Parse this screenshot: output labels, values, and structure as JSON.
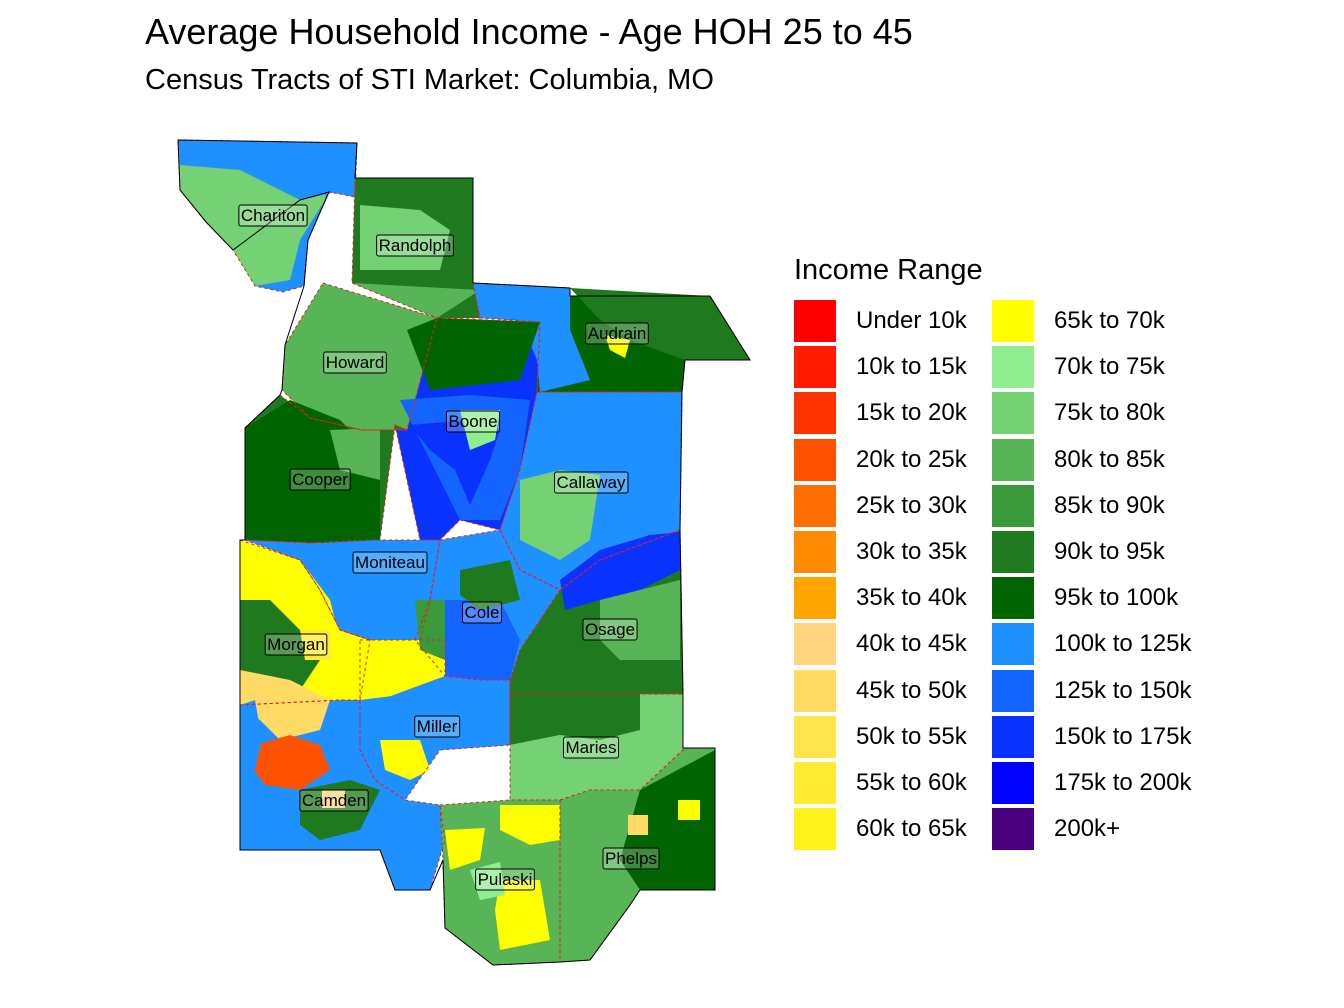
{
  "title": "Average Household Income - Age HOH 25 to 45",
  "subtitle": "Census Tracts of STI Market: Columbia, MO",
  "legend": {
    "title": "Income Range",
    "items": [
      {
        "label": "Under 10k",
        "color": "#ff0000"
      },
      {
        "label": "10k to 15k",
        "color": "#ff1a00"
      },
      {
        "label": "15k to 20k",
        "color": "#ff3300"
      },
      {
        "label": "20k to 25k",
        "color": "#ff5200"
      },
      {
        "label": "25k to 30k",
        "color": "#ff6e00"
      },
      {
        "label": "30k to 35k",
        "color": "#ff8c00"
      },
      {
        "label": "35k to 40k",
        "color": "#ffa500"
      },
      {
        "label": "40k to 45k",
        "color": "#ffd580"
      },
      {
        "label": "45k to 50k",
        "color": "#ffdb66"
      },
      {
        "label": "50k to 55k",
        "color": "#ffe44d"
      },
      {
        "label": "55k to 60k",
        "color": "#ffeb33"
      },
      {
        "label": "60k to 65k",
        "color": "#fff21a"
      },
      {
        "label": "65k to 70k",
        "color": "#ffff00"
      },
      {
        "label": "70k to 75k",
        "color": "#90ee90"
      },
      {
        "label": "75k to 80k",
        "color": "#74d174"
      },
      {
        "label": "80k to 85k",
        "color": "#57b557"
      },
      {
        "label": "85k to 90k",
        "color": "#3a993a"
      },
      {
        "label": "90k to 95k",
        "color": "#1f7a1f"
      },
      {
        "label": "95k to 100k",
        "color": "#006400"
      },
      {
        "label": "100k to 125k",
        "color": "#1e90ff"
      },
      {
        "label": "125k to 150k",
        "color": "#1464ff"
      },
      {
        "label": "150k to 175k",
        "color": "#0a32ff"
      },
      {
        "label": "175k to 200k",
        "color": "#0000ff"
      },
      {
        "label": "200k+",
        "color": "#4b0082"
      }
    ]
  },
  "counties": [
    {
      "name": "Chariton",
      "range": "100k to 125k"
    },
    {
      "name": "Randolph",
      "range": "90k to 95k"
    },
    {
      "name": "Audrain",
      "range": "95k to 100k"
    },
    {
      "name": "Howard",
      "range": "80k to 85k"
    },
    {
      "name": "Boone",
      "range": "150k to 175k"
    },
    {
      "name": "Cooper",
      "range": "90k to 95k"
    },
    {
      "name": "Callaway",
      "range": "100k to 125k"
    },
    {
      "name": "Moniteau",
      "range": "100k to 125k"
    },
    {
      "name": "Cole",
      "range": "100k to 125k"
    },
    {
      "name": "Osage",
      "range": "90k to 95k"
    },
    {
      "name": "Morgan",
      "range": "65k to 70k"
    },
    {
      "name": "Miller",
      "range": "100k to 125k"
    },
    {
      "name": "Maries",
      "range": "75k to 80k"
    },
    {
      "name": "Camden",
      "range": "100k to 125k"
    },
    {
      "name": "Phelps",
      "range": "80k to 85k"
    },
    {
      "name": "Pulaski",
      "range": "80k to 85k"
    }
  ]
}
